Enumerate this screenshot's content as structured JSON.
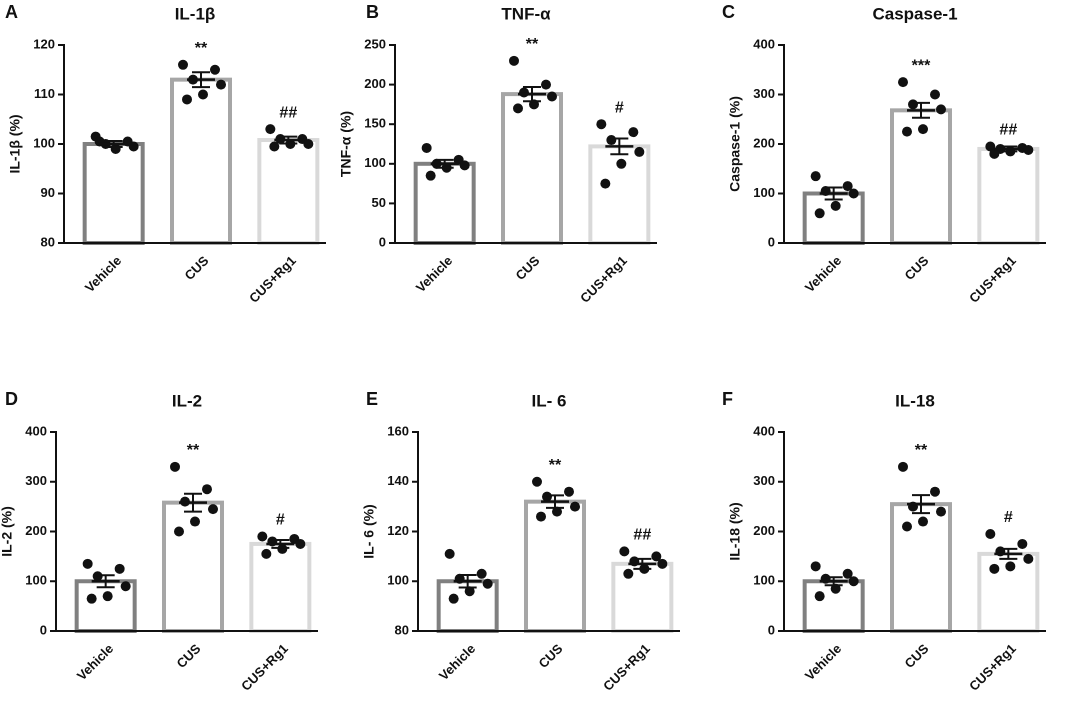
{
  "chart_data": [
    {
      "type": "bar",
      "panel": "A",
      "title": "IL-1β",
      "ylabel": "IL-1β (%)",
      "categories": [
        "Vehicle",
        "CUS",
        "CUS+Rg1"
      ],
      "values": [
        100,
        113,
        100.8
      ],
      "errors": [
        0.6,
        1.5,
        0.7
      ],
      "points": [
        [
          101.5,
          100.5,
          100,
          99.5,
          99,
          100.5
        ],
        [
          116,
          115,
          113,
          112,
          110,
          109
        ],
        [
          103,
          101,
          101,
          100,
          100,
          99.5
        ]
      ],
      "annotations": [
        null,
        "**",
        "##"
      ],
      "colors": [
        "#808080",
        "#a6a6a6",
        "#d9d9d9"
      ],
      "ylim": [
        80,
        120
      ],
      "yticks": [
        80,
        90,
        100,
        110,
        120
      ]
    },
    {
      "type": "bar",
      "panel": "B",
      "title": "TNF-α",
      "ylabel": "TNF-α (%)",
      "categories": [
        "Vehicle",
        "CUS",
        "CUS+Rg1"
      ],
      "values": [
        100,
        188,
        122
      ],
      "errors": [
        5,
        9,
        10
      ],
      "points": [
        [
          120,
          105,
          100,
          98,
          95,
          85
        ],
        [
          230,
          200,
          190,
          185,
          175,
          170
        ],
        [
          150,
          140,
          130,
          115,
          100,
          75
        ]
      ],
      "annotations": [
        null,
        "**",
        "#"
      ],
      "colors": [
        "#808080",
        "#a6a6a6",
        "#d9d9d9"
      ],
      "ylim": [
        0,
        250
      ],
      "yticks": [
        0,
        50,
        100,
        150,
        200,
        250
      ]
    },
    {
      "type": "bar",
      "panel": "C",
      "title": "Caspase-1",
      "ylabel": "Caspase-1 (%)",
      "categories": [
        "Vehicle",
        "CUS",
        "CUS+Rg1"
      ],
      "values": [
        100,
        268,
        190
      ],
      "errors": [
        12,
        15,
        5
      ],
      "points": [
        [
          135,
          115,
          105,
          100,
          75,
          60
        ],
        [
          325,
          300,
          280,
          270,
          230,
          225
        ],
        [
          195,
          192,
          190,
          188,
          185,
          180
        ]
      ],
      "annotations": [
        null,
        "***",
        "##"
      ],
      "colors": [
        "#808080",
        "#a6a6a6",
        "#d9d9d9"
      ],
      "ylim": [
        0,
        400
      ],
      "yticks": [
        0,
        100,
        200,
        300,
        400
      ]
    },
    {
      "type": "bar",
      "panel": "D",
      "title": "IL-2",
      "ylabel": "IL-2 (%)",
      "categories": [
        "Vehicle",
        "CUS",
        "CUS+Rg1"
      ],
      "values": [
        100,
        258,
        175
      ],
      "errors": [
        12,
        18,
        8
      ],
      "points": [
        [
          135,
          125,
          110,
          90,
          70,
          65
        ],
        [
          330,
          285,
          260,
          245,
          220,
          200
        ],
        [
          190,
          185,
          180,
          175,
          165,
          155
        ]
      ],
      "annotations": [
        null,
        "**",
        "#"
      ],
      "colors": [
        "#808080",
        "#a6a6a6",
        "#d9d9d9"
      ],
      "ylim": [
        0,
        400
      ],
      "yticks": [
        0,
        100,
        200,
        300,
        400
      ]
    },
    {
      "type": "bar",
      "panel": "E",
      "title": "IL- 6",
      "ylabel": "IL- 6 (%)",
      "categories": [
        "Vehicle",
        "CUS",
        "CUS+Rg1"
      ],
      "values": [
        100,
        132,
        107
      ],
      "errors": [
        2.5,
        2.5,
        2
      ],
      "points": [
        [
          111,
          103,
          101,
          99,
          96,
          93
        ],
        [
          140,
          136,
          134,
          130,
          128,
          126
        ],
        [
          112,
          110,
          108,
          107,
          105,
          103
        ]
      ],
      "annotations": [
        null,
        "**",
        "##"
      ],
      "colors": [
        "#808080",
        "#a6a6a6",
        "#d9d9d9"
      ],
      "ylim": [
        80,
        160
      ],
      "yticks": [
        80,
        100,
        120,
        140,
        160
      ]
    },
    {
      "type": "bar",
      "panel": "F",
      "title": "IL-18",
      "ylabel": "IL-18 (%)",
      "categories": [
        "Vehicle",
        "CUS",
        "CUS+Rg1"
      ],
      "values": [
        100,
        255,
        155
      ],
      "errors": [
        8,
        18,
        10
      ],
      "points": [
        [
          130,
          115,
          105,
          100,
          85,
          70
        ],
        [
          330,
          280,
          250,
          240,
          220,
          210
        ],
        [
          195,
          175,
          160,
          145,
          130,
          125
        ]
      ],
      "annotations": [
        null,
        "**",
        "#"
      ],
      "colors": [
        "#808080",
        "#a6a6a6",
        "#d9d9d9"
      ],
      "ylim": [
        0,
        400
      ],
      "yticks": [
        0,
        100,
        200,
        300,
        400
      ]
    }
  ]
}
